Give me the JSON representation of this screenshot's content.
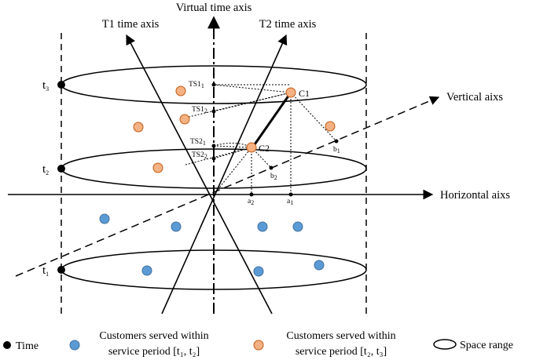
{
  "axes": {
    "virtual": "Virtual time axis",
    "t1": "T1 time axis",
    "t2": "T2 time axis",
    "vertical": "Vertical aixs",
    "horizontal": "Horizontal aixs"
  },
  "time_labels": {
    "t1": "t",
    "t1_sub": "1",
    "t2": "t",
    "t2_sub": "2",
    "t3": "t",
    "t3_sub": "3"
  },
  "points": {
    "ts1_1": "TS1",
    "ts1_1_sub": "1",
    "ts1_2": "TS1",
    "ts1_2_sub": "2",
    "ts2_1": "TS2",
    "ts2_1_sub": "1",
    "ts2_2": "TS2",
    "ts2_2_sub": "2",
    "c1": "C1",
    "c2": "C2",
    "b1": "b",
    "b1_sub": "1",
    "b2": "b",
    "b2_sub": "2",
    "a1": "a",
    "a1_sub": "1",
    "a2": "a",
    "a2_sub": "2"
  },
  "legend": {
    "time": "Time",
    "blue_line1": "Customers served within",
    "blue_line2": "service period [t₁, t₂]",
    "orange_line1": "Customers served within",
    "orange_line2": "service period [t₂, t₃]",
    "space": "Space range"
  },
  "colors": {
    "blue_customer": "#5b9bd5",
    "blue_customer_stroke": "#41719c",
    "orange_customer": "#f4b183",
    "orange_customer_stroke": "#c55a11",
    "line": "#000000"
  }
}
